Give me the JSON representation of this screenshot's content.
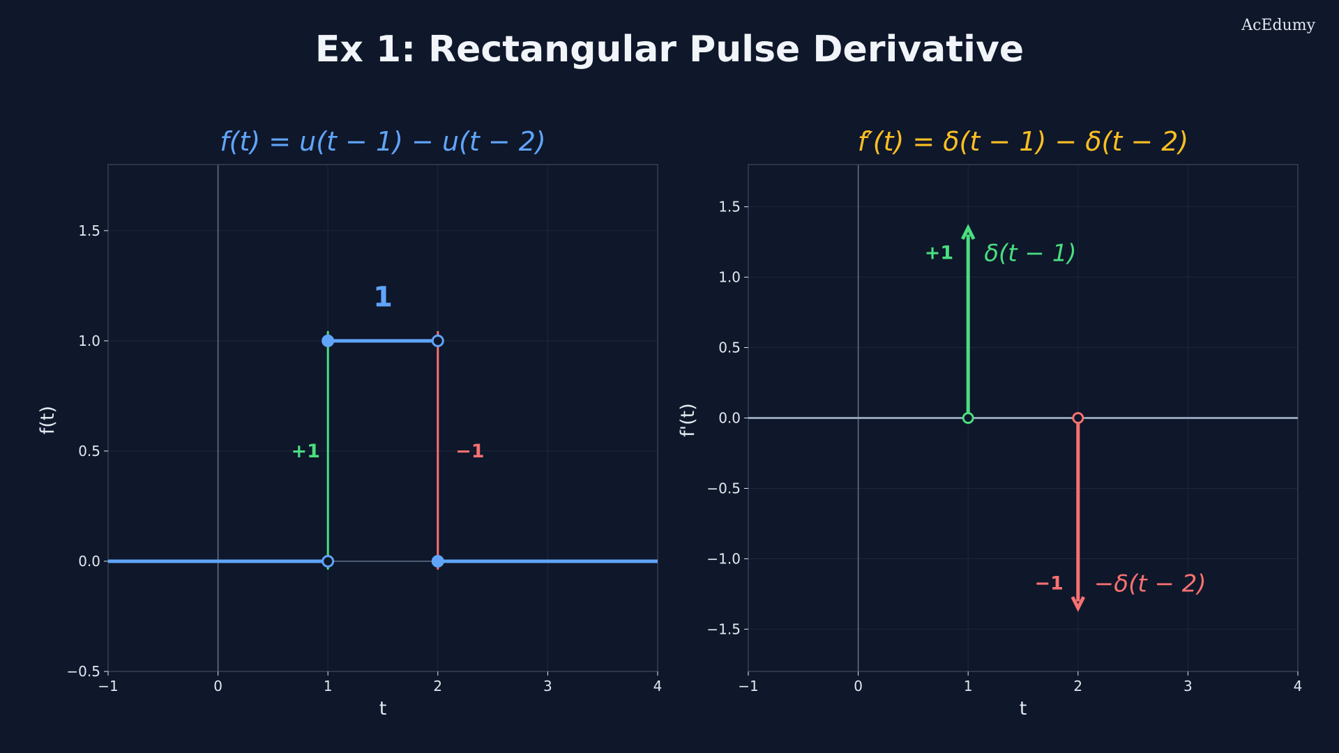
{
  "page": {
    "title": "Ex 1:  Rectangular Pulse Derivative",
    "watermark": "AcEdumy"
  },
  "colors": {
    "background": "#0f172a",
    "panel": "#0f172a",
    "blue": "#60a5fa",
    "green": "#4ade80",
    "red": "#f87171",
    "yellow": "#fbbf24",
    "axis": "#94a3b8",
    "grid": "#1e293b",
    "text": "#e2e8f0"
  },
  "chart_data": [
    {
      "type": "line",
      "title": "f(t) = u(t − 1) − u(t − 2)",
      "title_color": "#60a5fa",
      "xlabel": "t",
      "ylabel": "f(t)",
      "xlim": [
        -1,
        4
      ],
      "ylim": [
        -0.5,
        1.8
      ],
      "xticks": [
        -1,
        0,
        1,
        2,
        3,
        4
      ],
      "xtick_labels": [
        "−1",
        "0",
        "1",
        "2",
        "3",
        "4"
      ],
      "yticks": [
        -0.5,
        0.0,
        0.5,
        1.0,
        1.5
      ],
      "ytick_labels": [
        "−0.5",
        "0.0",
        "0.5",
        "1.0",
        "1.5"
      ],
      "grid": true,
      "series": [
        {
          "segments": [
            [
              [
                -1,
                0
              ],
              [
                1,
                0
              ]
            ],
            [
              [
                1,
                1
              ],
              [
                2,
                1
              ]
            ],
            [
              [
                2,
                0
              ],
              [
                4,
                0
              ]
            ]
          ],
          "color": "#60a5fa"
        }
      ],
      "jumps": [
        {
          "x": 1,
          "from": 0,
          "to": 1,
          "color": "#4ade80",
          "label": "+1"
        },
        {
          "x": 2,
          "from": 1,
          "to": 0,
          "color": "#f87171",
          "label": "−1"
        }
      ],
      "points": [
        {
          "x": 1,
          "y": 1,
          "filled": true
        },
        {
          "x": 1,
          "y": 0,
          "filled": false
        },
        {
          "x": 2,
          "y": 1,
          "filled": false
        },
        {
          "x": 2,
          "y": 0,
          "filled": true
        }
      ],
      "annotations": [
        {
          "text": "1",
          "x": 1.5,
          "y": 1.2,
          "color": "#60a5fa"
        }
      ]
    },
    {
      "type": "line",
      "title": "f′(t) = δ(t − 1) − δ(t − 2)",
      "title_color": "#fbbf24",
      "xlabel": "t",
      "ylabel": "f'(t)",
      "xlim": [
        -1,
        4
      ],
      "ylim": [
        -1.8,
        1.8
      ],
      "xticks": [
        -1,
        0,
        1,
        2,
        3,
        4
      ],
      "xtick_labels": [
        "−1",
        "0",
        "1",
        "2",
        "3",
        "4"
      ],
      "yticks": [
        -1.5,
        -1.0,
        -0.5,
        0.0,
        0.5,
        1.0,
        1.5
      ],
      "ytick_labels": [
        "−1.5",
        "−1.0",
        "−0.5",
        "0.0",
        "0.5",
        "1.0",
        "1.5"
      ],
      "grid": true,
      "impulses": [
        {
          "x": 1,
          "height": 1.35,
          "color": "#4ade80",
          "weight_label": "+1",
          "name": "δ(t − 1)"
        },
        {
          "x": 2,
          "height": -1.35,
          "color": "#f87171",
          "weight_label": "−1",
          "name": "−δ(t − 2)"
        }
      ]
    }
  ]
}
